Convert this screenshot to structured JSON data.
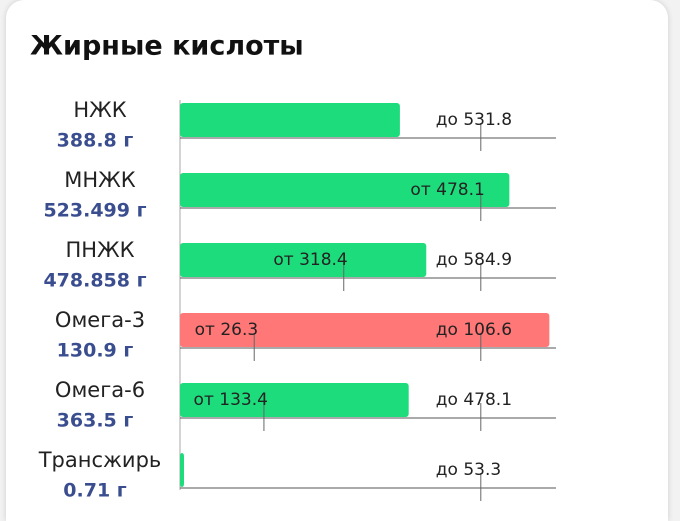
{
  "title": "Жирные кислоты",
  "rows": [
    {
      "name": "НЖК",
      "amount": {
        "value": 388.8,
        "label": "388.8 г"
      },
      "color": "#1ddc7c",
      "max": {
        "value": 531.8,
        "label": "до 531.8"
      }
    },
    {
      "name": "МНЖК",
      "amount": {
        "value": 523.499,
        "label": "523.499 г"
      },
      "color": "#1ddc7c",
      "min": {
        "value": 478.1,
        "label": "от 478.1"
      }
    },
    {
      "name": "ПНЖК",
      "amount": {
        "value": 478.858,
        "label": "478.858 г"
      },
      "color": "#1ddc7c",
      "min": {
        "value": 318.4,
        "label": "от 318.4"
      },
      "max": {
        "value": 584.9,
        "label": "до 584.9"
      }
    },
    {
      "name": "Омега-3",
      "amount": {
        "value": 130.9,
        "label": "130.9 г"
      },
      "color": "#ff7777",
      "min": {
        "value": 26.3,
        "label": "от 26.3"
      },
      "max": {
        "value": 106.6,
        "label": "до 106.6"
      }
    },
    {
      "name": "Омега-6",
      "amount": {
        "value": 363.5,
        "label": "363.5 г"
      },
      "color": "#1ddc7c",
      "min": {
        "value": 133.4,
        "label": "от 133.4"
      },
      "max": {
        "value": 478.1,
        "label": "до 478.1"
      }
    },
    {
      "name": "Трансжирь",
      "amount": {
        "value": 0.71,
        "label": "0.71 г"
      },
      "color": "#1ddc7c",
      "max": {
        "value": 53.3,
        "label": "до 53.3"
      }
    }
  ]
}
